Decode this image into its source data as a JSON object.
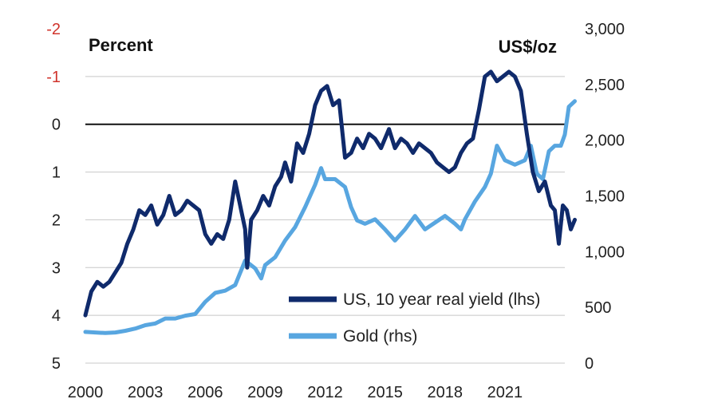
{
  "chart_data": {
    "type": "line",
    "y_left_label": "Percent",
    "y_right_label": "US$/oz",
    "y_left_inverted": true,
    "y_left_range": [
      -2,
      5
    ],
    "y_right_range": [
      0,
      3000
    ],
    "x_range": [
      2000,
      2024
    ],
    "x_ticks": [
      {
        "value": 2000,
        "label": "2000"
      },
      {
        "value": 2003,
        "label": "2003"
      },
      {
        "value": 2006,
        "label": "2006"
      },
      {
        "value": 2009,
        "label": "2009"
      },
      {
        "value": 2012,
        "label": "2012"
      },
      {
        "value": 2015,
        "label": "2015"
      },
      {
        "value": 2018,
        "label": "2018"
      },
      {
        "value": 2021,
        "label": "2021"
      }
    ],
    "y_left_ticks": [
      {
        "value": -2,
        "label": "-2",
        "color": "#d0342c"
      },
      {
        "value": -1,
        "label": "-1",
        "color": "#d0342c"
      },
      {
        "value": 0,
        "label": "0",
        "color": "#222222"
      },
      {
        "value": 1,
        "label": "1",
        "color": "#222222"
      },
      {
        "value": 2,
        "label": "2",
        "color": "#222222"
      },
      {
        "value": 3,
        "label": "3",
        "color": "#222222"
      },
      {
        "value": 4,
        "label": "4",
        "color": "#222222"
      },
      {
        "value": 5,
        "label": "5",
        "color": "#222222"
      }
    ],
    "y_right_ticks": [
      {
        "value": 3000,
        "label": "3,000"
      },
      {
        "value": 2500,
        "label": "2,500"
      },
      {
        "value": 2000,
        "label": "2,000"
      },
      {
        "value": 1500,
        "label": "1,500"
      },
      {
        "value": 1000,
        "label": "1,000"
      },
      {
        "value": 500,
        "label": "500"
      },
      {
        "value": 0,
        "label": "0"
      }
    ],
    "grid": true,
    "legend_position": "bottom-right",
    "series": [
      {
        "name": "US, 10 year real yield (lhs)",
        "axis": "left",
        "color": "#0f2a6b",
        "points": [
          [
            2000.0,
            4.0
          ],
          [
            2000.3,
            3.5
          ],
          [
            2000.6,
            3.3
          ],
          [
            2000.9,
            3.4
          ],
          [
            2001.2,
            3.3
          ],
          [
            2001.5,
            3.1
          ],
          [
            2001.8,
            2.9
          ],
          [
            2002.1,
            2.5
          ],
          [
            2002.4,
            2.2
          ],
          [
            2002.7,
            1.8
          ],
          [
            2003.0,
            1.9
          ],
          [
            2003.3,
            1.7
          ],
          [
            2003.6,
            2.1
          ],
          [
            2003.9,
            1.9
          ],
          [
            2004.2,
            1.5
          ],
          [
            2004.5,
            1.9
          ],
          [
            2004.8,
            1.8
          ],
          [
            2005.1,
            1.6
          ],
          [
            2005.4,
            1.7
          ],
          [
            2005.7,
            1.8
          ],
          [
            2006.0,
            2.3
          ],
          [
            2006.3,
            2.5
          ],
          [
            2006.6,
            2.3
          ],
          [
            2006.9,
            2.4
          ],
          [
            2007.2,
            2.0
          ],
          [
            2007.5,
            1.2
          ],
          [
            2007.8,
            1.8
          ],
          [
            2008.0,
            2.2
          ],
          [
            2008.1,
            3.0
          ],
          [
            2008.3,
            2.0
          ],
          [
            2008.6,
            1.8
          ],
          [
            2008.9,
            1.5
          ],
          [
            2009.2,
            1.7
          ],
          [
            2009.5,
            1.3
          ],
          [
            2009.8,
            1.1
          ],
          [
            2010.0,
            0.8
          ],
          [
            2010.3,
            1.2
          ],
          [
            2010.6,
            0.4
          ],
          [
            2010.9,
            0.6
          ],
          [
            2011.2,
            0.2
          ],
          [
            2011.5,
            -0.4
          ],
          [
            2011.8,
            -0.7
          ],
          [
            2012.1,
            -0.8
          ],
          [
            2012.4,
            -0.4
          ],
          [
            2012.7,
            -0.5
          ],
          [
            2013.0,
            0.7
          ],
          [
            2013.3,
            0.6
          ],
          [
            2013.6,
            0.3
          ],
          [
            2013.9,
            0.5
          ],
          [
            2014.2,
            0.2
          ],
          [
            2014.5,
            0.3
          ],
          [
            2014.8,
            0.5
          ],
          [
            2015.2,
            0.1
          ],
          [
            2015.5,
            0.5
          ],
          [
            2015.8,
            0.3
          ],
          [
            2016.1,
            0.4
          ],
          [
            2016.4,
            0.6
          ],
          [
            2016.7,
            0.4
          ],
          [
            2017.0,
            0.5
          ],
          [
            2017.3,
            0.6
          ],
          [
            2017.6,
            0.8
          ],
          [
            2017.9,
            0.9
          ],
          [
            2018.2,
            1.0
          ],
          [
            2018.5,
            0.9
          ],
          [
            2018.8,
            0.6
          ],
          [
            2019.1,
            0.4
          ],
          [
            2019.4,
            0.3
          ],
          [
            2019.7,
            -0.3
          ],
          [
            2020.0,
            -1.0
          ],
          [
            2020.3,
            -1.1
          ],
          [
            2020.6,
            -0.9
          ],
          [
            2020.9,
            -1.0
          ],
          [
            2021.2,
            -1.1
          ],
          [
            2021.5,
            -1.0
          ],
          [
            2021.8,
            -0.7
          ],
          [
            2022.1,
            0.2
          ],
          [
            2022.4,
            1.0
          ],
          [
            2022.7,
            1.4
          ],
          [
            2023.0,
            1.2
          ],
          [
            2023.3,
            1.7
          ],
          [
            2023.5,
            1.8
          ],
          [
            2023.7,
            2.5
          ],
          [
            2023.9,
            1.7
          ],
          [
            2024.1,
            1.8
          ],
          [
            2024.3,
            2.2
          ],
          [
            2024.5,
            2.0
          ]
        ]
      },
      {
        "name": "Gold (rhs)",
        "axis": "right",
        "color": "#58a6e0",
        "points": [
          [
            2000.0,
            280
          ],
          [
            2000.5,
            275
          ],
          [
            2001.0,
            270
          ],
          [
            2001.5,
            275
          ],
          [
            2002.0,
            290
          ],
          [
            2002.5,
            310
          ],
          [
            2003.0,
            340
          ],
          [
            2003.5,
            355
          ],
          [
            2004.0,
            400
          ],
          [
            2004.5,
            400
          ],
          [
            2005.0,
            425
          ],
          [
            2005.5,
            440
          ],
          [
            2006.0,
            550
          ],
          [
            2006.5,
            630
          ],
          [
            2007.0,
            650
          ],
          [
            2007.5,
            700
          ],
          [
            2008.0,
            920
          ],
          [
            2008.5,
            850
          ],
          [
            2008.8,
            760
          ],
          [
            2009.0,
            880
          ],
          [
            2009.5,
            950
          ],
          [
            2010.0,
            1100
          ],
          [
            2010.5,
            1220
          ],
          [
            2011.0,
            1400
          ],
          [
            2011.5,
            1600
          ],
          [
            2011.8,
            1750
          ],
          [
            2012.0,
            1650
          ],
          [
            2012.5,
            1650
          ],
          [
            2013.0,
            1580
          ],
          [
            2013.3,
            1400
          ],
          [
            2013.6,
            1280
          ],
          [
            2014.0,
            1250
          ],
          [
            2014.5,
            1290
          ],
          [
            2015.0,
            1200
          ],
          [
            2015.5,
            1100
          ],
          [
            2016.0,
            1200
          ],
          [
            2016.5,
            1320
          ],
          [
            2017.0,
            1200
          ],
          [
            2017.5,
            1260
          ],
          [
            2018.0,
            1320
          ],
          [
            2018.5,
            1250
          ],
          [
            2018.8,
            1200
          ],
          [
            2019.0,
            1290
          ],
          [
            2019.5,
            1450
          ],
          [
            2020.0,
            1580
          ],
          [
            2020.3,
            1700
          ],
          [
            2020.6,
            1950
          ],
          [
            2021.0,
            1820
          ],
          [
            2021.5,
            1780
          ],
          [
            2022.0,
            1820
          ],
          [
            2022.3,
            1950
          ],
          [
            2022.6,
            1700
          ],
          [
            2022.9,
            1650
          ],
          [
            2023.2,
            1900
          ],
          [
            2023.5,
            1950
          ],
          [
            2023.8,
            1950
          ],
          [
            2024.0,
            2050
          ],
          [
            2024.2,
            2300
          ],
          [
            2024.5,
            2350
          ]
        ]
      }
    ]
  }
}
